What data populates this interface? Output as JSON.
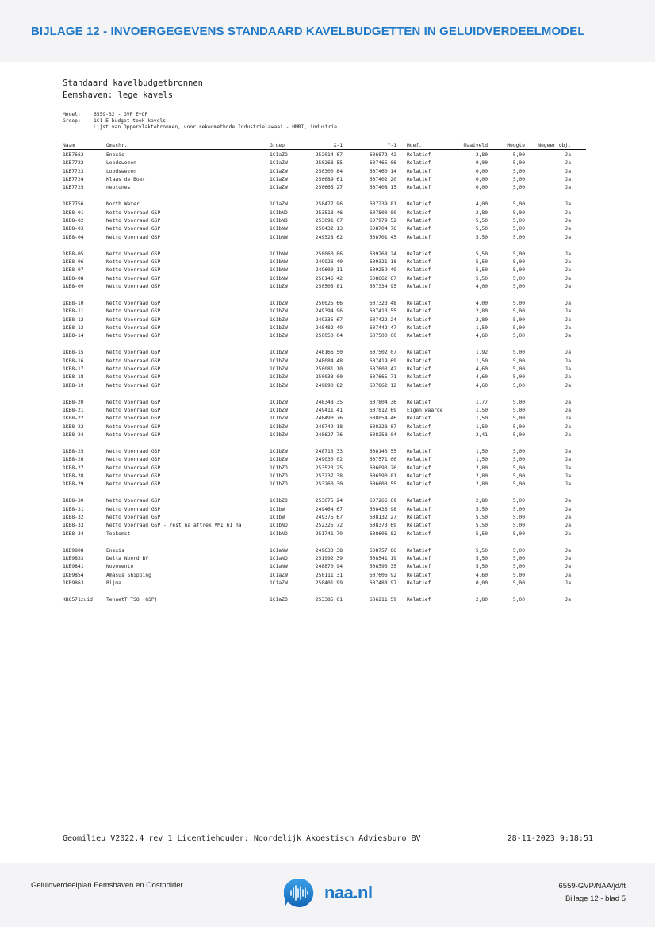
{
  "header": {
    "title": "BIJLAGE 12 - INVOERGEGEVENS STANDAARD KAVELBUDGETTEN IN GELUIDVERDEELMODEL"
  },
  "report": {
    "title": "Standaard kavelbudgetbronnen",
    "subtitle": "Eemshaven: lege kavels",
    "model_label": "Model:",
    "model_value": "6559-32 - GVP E+OP",
    "groep_label": "Groep:",
    "groep_value": "1C1-E budget toek kavels",
    "description": "Lijst van Oppervlaktebronnen, voor rekenmethode Industrielawaai - HMRI, industrie",
    "columns": [
      "Naam",
      "Omschr.",
      "Groep",
      "X-1",
      "Y-1",
      "Hdef.",
      "Maaiveld",
      "Hoogte",
      "Negeer obj."
    ],
    "groups": [
      [
        [
          "1KB7663",
          "Enexis",
          "1C1aZO",
          "252014,87",
          "606872,42",
          "Relatief",
          "2,80",
          "5,00",
          "Ja"
        ],
        [
          "1KB7722",
          "Loodswezen",
          "1C1aZW",
          "250268,55",
          "607465,06",
          "Relatief",
          "0,00",
          "5,00",
          "Ja"
        ],
        [
          "1KB7723",
          "Loodswezen",
          "1C1aZW",
          "250300,84",
          "607460,14",
          "Relatief",
          "0,00",
          "5,00",
          "Ja"
        ],
        [
          "1KB7724",
          "Klaas de Boer",
          "1C1aZW",
          "250689,61",
          "607402,20",
          "Relatief",
          "0,00",
          "5,00",
          "Ja"
        ],
        [
          "1KB7725",
          "neptunes",
          "1C1aZW",
          "250665,27",
          "607408,15",
          "Relatief",
          "0,00",
          "5,00",
          "Ja"
        ]
      ],
      [
        [
          "1KB7756",
          "North Water",
          "1C1aZW",
          "250477,96",
          "607239,81",
          "Relatief",
          "4,00",
          "5,00",
          "Ja"
        ],
        [
          "1KB8-01",
          "Netto Voorraad GSP",
          "1C1bNO",
          "253513,46",
          "607500,00",
          "Relatief",
          "2,80",
          "5,00",
          "Ja"
        ],
        [
          "1KB8-02",
          "Netto Voorraad GSP",
          "1C1bNO",
          "253091,07",
          "607979,52",
          "Relatief",
          "5,50",
          "5,00",
          "Ja"
        ],
        [
          "1KB8-03",
          "Netto Voorraad GSP",
          "1C1bNW",
          "250432,13",
          "608704,76",
          "Relatief",
          "5,50",
          "5,00",
          "Ja"
        ],
        [
          "1KB8-04",
          "Netto Voorraad GSP",
          "1C1bNW",
          "249528,62",
          "608701,45",
          "Relatief",
          "5,50",
          "5,00",
          "Ja"
        ]
      ],
      [
        [
          "1KB8-05",
          "Netto Voorraad GSP",
          "1C1bNW",
          "250060,06",
          "609268,24",
          "Relatief",
          "5,50",
          "5,00",
          "Ja"
        ],
        [
          "1KB8-06",
          "Netto Voorraad GSP",
          "1C1bNW",
          "249926,40",
          "609321,18",
          "Relatief",
          "5,50",
          "5,00",
          "Ja"
        ],
        [
          "1KB8-07",
          "Netto Voorraad GSP",
          "1C1bNW",
          "249600,11",
          "609259,49",
          "Relatief",
          "5,50",
          "5,00",
          "Ja"
        ],
        [
          "1KB8-08",
          "Netto Voorraad GSP",
          "1C1bNW",
          "250146,42",
          "608662,67",
          "Relatief",
          "5,50",
          "5,00",
          "Ja"
        ],
        [
          "1KB8-09",
          "Netto Voorraad GSP",
          "1C1bZW",
          "250505,81",
          "607334,95",
          "Relatief",
          "4,00",
          "5,00",
          "Ja"
        ]
      ],
      [
        [
          "1KB8-10",
          "Netto Voorraad GSP",
          "1C1bZW",
          "250025,66",
          "607323,48",
          "Relatief",
          "4,00",
          "5,00",
          "Ja"
        ],
        [
          "1KB8-11",
          "Netto Voorraad GSP",
          "1C1bZW",
          "249394,96",
          "607413,55",
          "Relatief",
          "2,80",
          "5,00",
          "Ja"
        ],
        [
          "1KB8-12",
          "Netto Voorraad GSP",
          "1C1bZW",
          "249335,67",
          "607422,24",
          "Relatief",
          "2,80",
          "5,00",
          "Ja"
        ],
        [
          "1KB8-13",
          "Netto Voorraad GSP",
          "1C1bZW",
          "248482,49",
          "607442,47",
          "Relatief",
          "1,50",
          "5,00",
          "Ja"
        ],
        [
          "1KB8-14",
          "Netto Voorraad GSP",
          "1C1bZW",
          "250050,04",
          "607500,00",
          "Relatief",
          "4,60",
          "5,00",
          "Ja"
        ]
      ],
      [
        [
          "1KB8-15",
          "Netto Voorraad GSP",
          "1C1bZW",
          "248166,50",
          "607502,07",
          "Relatief",
          "1,92",
          "5,00",
          "Ja"
        ],
        [
          "1KB8-16",
          "Netto Voorraad GSP",
          "1C1bZW",
          "248084,48",
          "607419,69",
          "Relatief",
          "1,50",
          "5,00",
          "Ja"
        ],
        [
          "1KB8-17",
          "Netto Voorraad GSP",
          "1C1bZW",
          "250081,10",
          "607603,42",
          "Relatief",
          "4,60",
          "5,00",
          "Ja"
        ],
        [
          "1KB8-18",
          "Netto Voorraad GSP",
          "1C1bZW",
          "250033,00",
          "607665,71",
          "Relatief",
          "4,60",
          "5,00",
          "Ja"
        ],
        [
          "1KB8-19",
          "Netto Voorraad GSP",
          "1C1bZW",
          "249890,82",
          "607862,12",
          "Relatief",
          "4,60",
          "5,00",
          "Ja"
        ]
      ],
      [
        [
          "1KB8-20",
          "Netto Voorraad GSP",
          "1C1bZW",
          "248348,35",
          "607804,36",
          "Relatief",
          "1,77",
          "5,00",
          "Ja"
        ],
        [
          "1KB8-21",
          "Netto Voorraad GSP",
          "1C1bZW",
          "249411,41",
          "607812,69",
          "Eigen waarde",
          "1,50",
          "5,00",
          "Ja"
        ],
        [
          "1KB8-22",
          "Netto Voorraad GSP",
          "1C1bZW",
          "248490,76",
          "608054,46",
          "Relatief",
          "1,50",
          "5,00",
          "Ja"
        ],
        [
          "1KB8-23",
          "Netto Voorraad GSP",
          "1C1bZW",
          "248749,18",
          "608328,87",
          "Relatief",
          "1,50",
          "5,00",
          "Ja"
        ],
        [
          "1KB8-24",
          "Netto Voorraad GSP",
          "1C1bZW",
          "248627,76",
          "608258,04",
          "Relatief",
          "2,41",
          "5,00",
          "Ja"
        ]
      ],
      [
        [
          "1KB8-25",
          "Netto Voorraad GSP",
          "1C1bZW",
          "248713,33",
          "608143,55",
          "Relatief",
          "1,50",
          "5,00",
          "Ja"
        ],
        [
          "1KB8-26",
          "Netto Voorraad GSP",
          "1C1bZW",
          "249030,02",
          "607571,06",
          "Relatief",
          "1,50",
          "5,00",
          "Ja"
        ],
        [
          "1KB8-27",
          "Netto Voorraad GSP",
          "1C1bZO",
          "253523,25",
          "606093,26",
          "Relatief",
          "2,80",
          "5,00",
          "Ja"
        ],
        [
          "1KB8-28",
          "Netto Voorraad GSP",
          "1C1bZO",
          "253237,38",
          "606590,81",
          "Relatief",
          "2,80",
          "5,00",
          "Ja"
        ],
        [
          "1KB8-29",
          "Netto Voorraad GSP",
          "1C1bZO",
          "253260,30",
          "606603,55",
          "Relatief",
          "2,80",
          "5,00",
          "Ja"
        ]
      ],
      [
        [
          "1KB8-30",
          "Netto Voorraad GSP",
          "1C1bZO",
          "253675,24",
          "607266,69",
          "Relatief",
          "2,80",
          "5,00",
          "Ja"
        ],
        [
          "1KB8-31",
          "Netto Voorraad GSP",
          "1C1bW",
          "249464,67",
          "608436,98",
          "Relatief",
          "5,50",
          "5,00",
          "Ja"
        ],
        [
          "1KB8-32",
          "Netto Voorraad GSP",
          "1C1bW",
          "249375,67",
          "608132,27",
          "Relatief",
          "5,50",
          "5,00",
          "Ja"
        ],
        [
          "1KB8-33",
          "Netto Voorraad GSP - rest na aftrek VMI 61 ha",
          "1C1bNO",
          "252325,72",
          "608373,69",
          "Relatief",
          "5,50",
          "5,00",
          "Ja"
        ],
        [
          "1KB8-34",
          "Toekomst",
          "1C1bNO",
          "251741,79",
          "608606,82",
          "Relatief",
          "5,50",
          "5,00",
          "Ja"
        ]
      ],
      [
        [
          "1KB9808",
          "Enexis",
          "1C1aNW",
          "249633,38",
          "608757,86",
          "Relatief",
          "5,50",
          "5,00",
          "Ja"
        ],
        [
          "1KB9833",
          "Delta Noord BV",
          "1C1aNO",
          "251992,39",
          "608541,19",
          "Relatief",
          "5,50",
          "5,00",
          "Ja"
        ],
        [
          "1KB9841",
          "Novovento",
          "1C1aNW",
          "248870,94",
          "608593,35",
          "Relatief",
          "5,50",
          "5,00",
          "Ja"
        ],
        [
          "1KB9854",
          "Amasus Shipping",
          "1C1aZW",
          "250111,31",
          "607606,92",
          "Relatief",
          "4,60",
          "5,00",
          "Ja"
        ],
        [
          "1KB9863",
          "Bijma",
          "1C1aZW",
          "250401,99",
          "607488,97",
          "Relatief",
          "0,00",
          "5,00",
          "Ja"
        ]
      ],
      [
        [
          "KB6571zuid",
          "TennetT TSO (GSP)",
          "1C1aZO",
          "253385,01",
          "606211,59",
          "Relatief",
          "2,80",
          "5,00",
          "Ja"
        ]
      ]
    ]
  },
  "footer": {
    "software": "Geomilieu V2022.4 rev 1 Licentiehouder: Noordelijk Akoestisch Adviesburo BV",
    "datetime": "28-11-2023 9:18:51"
  },
  "page_footer": {
    "project": "Geluidverdeelplan Eemshaven en Oostpolder",
    "logo_text": "naa.nl",
    "reference": "6559-GVP/NAA/jd/ft",
    "page": "Bijlage 12 - blad 5"
  },
  "colors": {
    "accent": "#1f78c8",
    "band": "#f4f4f6"
  }
}
